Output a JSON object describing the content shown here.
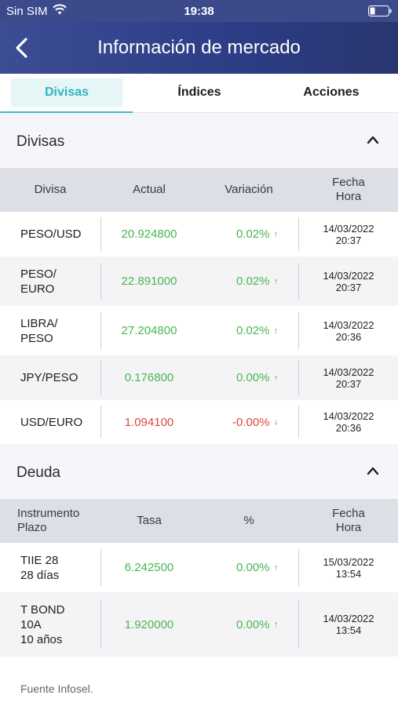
{
  "status": {
    "carrier": "Sin SIM",
    "time": "19:38"
  },
  "nav": {
    "title": "Información de mercado"
  },
  "tabs": [
    {
      "label": "Divisas"
    },
    {
      "label": "Índices"
    },
    {
      "label": "Acciones"
    }
  ],
  "divisas": {
    "title": "Divisas",
    "columns": {
      "name": "Divisa",
      "current": "Actual",
      "variation": "Variación",
      "date": "Fecha\nHora"
    },
    "rows": [
      {
        "name": "PESO/USD",
        "value": "20.924800",
        "variation": "0.02%",
        "trend": "up",
        "date": "14/03/2022",
        "time": "20:37"
      },
      {
        "name": "PESO/\nEURO",
        "value": "22.891000",
        "variation": "0.02%",
        "trend": "up",
        "date": "14/03/2022",
        "time": "20:37"
      },
      {
        "name": "LIBRA/\nPESO",
        "value": "27.204800",
        "variation": "0.02%",
        "trend": "up",
        "date": "14/03/2022",
        "time": "20:36"
      },
      {
        "name": "JPY/PESO",
        "value": "0.176800",
        "variation": "0.00%",
        "trend": "up",
        "date": "14/03/2022",
        "time": "20:37"
      },
      {
        "name": "USD/EURO",
        "value": "1.094100",
        "variation": "-0.00%",
        "trend": "down",
        "date": "14/03/2022",
        "time": "20:36"
      }
    ]
  },
  "deuda": {
    "title": "Deuda",
    "columns": {
      "name": "Instrumento\nPlazo",
      "current": "Tasa",
      "variation": "%",
      "date": "Fecha\nHora"
    },
    "rows": [
      {
        "name": "TIIE 28\n28 días",
        "value": "6.242500",
        "variation": "0.00%",
        "trend": "up",
        "date": "15/03/2022",
        "time": "13:54"
      },
      {
        "name": "T BOND\n10A\n10 años",
        "value": "1.920000",
        "variation": "0.00%",
        "trend": "up",
        "date": "14/03/2022",
        "time": "13:54"
      }
    ]
  },
  "footer": {
    "source": "Fuente Infosel."
  },
  "colors": {
    "up": "#49b64f",
    "down": "#e2453f",
    "accent": "#3fb9c4",
    "header": "#2c3d86"
  }
}
